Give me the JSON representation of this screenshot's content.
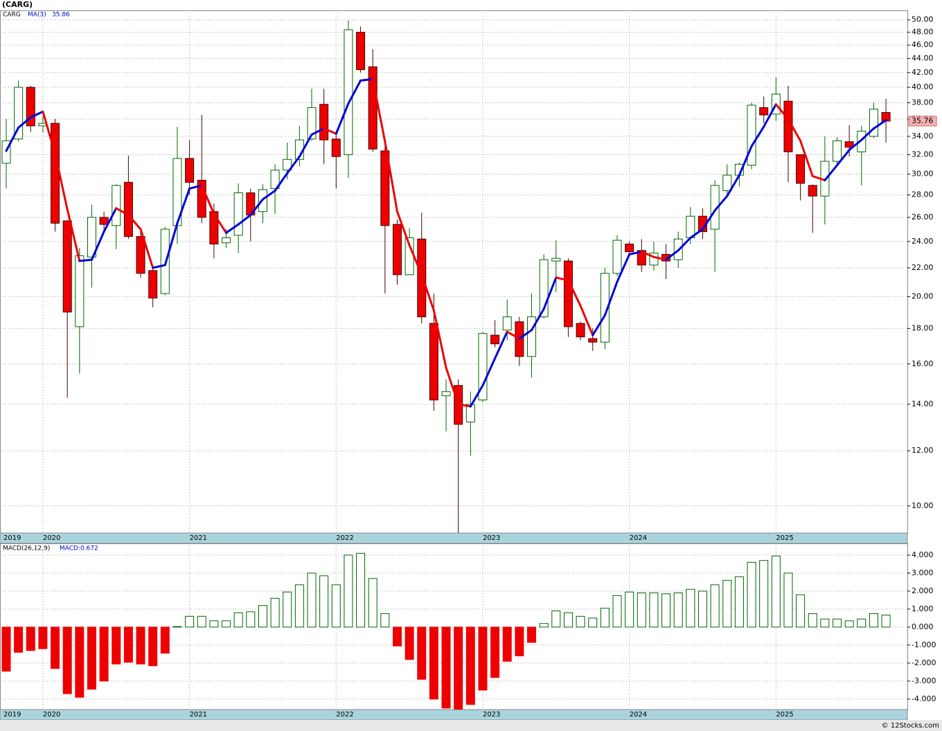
{
  "chart_data": [
    {
      "type": "candlestick",
      "title": "(CARG)",
      "name": "CARG",
      "log_scale": true,
      "grid": true,
      "categories": [
        "2019",
        null,
        null,
        "2020",
        null,
        null,
        null,
        null,
        null,
        null,
        null,
        null,
        null,
        null,
        null,
        "2021",
        null,
        null,
        null,
        null,
        null,
        null,
        null,
        null,
        null,
        null,
        null,
        "2022",
        null,
        null,
        null,
        null,
        null,
        null,
        null,
        null,
        null,
        null,
        null,
        "2023",
        null,
        null,
        null,
        null,
        null,
        null,
        null,
        null,
        null,
        null,
        null,
        "2024",
        null,
        null,
        null,
        null,
        null,
        null,
        null,
        null,
        null,
        null,
        null,
        "2025",
        null,
        null,
        null,
        null,
        null,
        null,
        null,
        null,
        null
      ],
      "open": [
        31.1,
        33.7,
        40,
        35.2,
        35.5,
        25.7,
        18.1,
        22.8,
        26.0,
        25.3,
        29.2,
        24.4,
        21.8,
        20.2,
        25.3,
        31.6,
        29.4,
        26.5,
        23.9,
        24.5,
        28.2,
        26.5,
        28.6,
        30.4,
        31.5,
        33.7,
        37.8,
        33.7,
        32.0,
        48.0,
        42.8,
        32.4,
        25.4,
        21.5,
        24.2,
        18.3,
        14.4,
        14.9,
        13.2,
        14.2,
        17.6,
        17.9,
        18.4,
        16.4,
        18.7,
        22.5,
        22.5,
        18.3,
        17.4,
        17.2,
        21.6,
        23.8,
        23.3,
        22.2,
        23.0,
        22.6,
        24.3,
        26.1,
        25.0,
        28.4,
        29.9,
        30.9,
        37.4,
        36.6,
        38.2,
        32.0,
        28.9,
        27.9,
        31.3,
        33.4,
        32.3,
        34.0,
        36.8
      ],
      "high": [
        36,
        40.9,
        40.2,
        36.3,
        36,
        25.7,
        23.5,
        27.1,
        26.5,
        29.0,
        31.9,
        24.8,
        22.0,
        25.2,
        35.1,
        33.6,
        36.5,
        27.2,
        25.0,
        29.1,
        28.6,
        29,
        31.0,
        33.3,
        35.2,
        39.8,
        39.8,
        34.2,
        49.9,
        48.9,
        45.4,
        33,
        25.8,
        25.1,
        26.4,
        20.2,
        15.2,
        15.2,
        14.6,
        17.8,
        18.5,
        19.8,
        18.7,
        20.2,
        23.0,
        24.1,
        22.7,
        18.4,
        18.0,
        22.0,
        24.5,
        24.0,
        24.2,
        24.0,
        23.8,
        24.8,
        26.9,
        26.8,
        29.4,
        31.0,
        31.2,
        38.0,
        38.8,
        41.3,
        40.2,
        32.0,
        29.0,
        34,
        33.9,
        35.3,
        35.2,
        38.0,
        38.5
      ],
      "low": [
        28.6,
        33.4,
        34.5,
        34.4,
        24.8,
        14.3,
        15.5,
        20.6,
        24.7,
        23.4,
        24.2,
        21.3,
        19.3,
        20.1,
        23.8,
        28,
        25.5,
        22.7,
        23.5,
        23.1,
        24.0,
        25.5,
        26.3,
        29.5,
        30.8,
        33.5,
        31.0,
        28.6,
        29.6,
        42,
        32.3,
        20.2,
        20.8,
        21.5,
        18.3,
        13.7,
        12.8,
        9.0,
        11.8,
        14.1,
        16.9,
        17.3,
        15.9,
        15.3,
        18.6,
        20.3,
        17.5,
        17.3,
        16.7,
        16.8,
        21.4,
        23.0,
        21.7,
        21.8,
        21.2,
        22.0,
        23.8,
        24.2,
        21.7,
        28.0,
        28.8,
        30.5,
        35.5,
        35.8,
        29.2,
        27.5,
        24.7,
        25.4,
        30.9,
        31.8,
        28.9,
        33.8,
        33.3
      ],
      "close": [
        33.5,
        40,
        35.2,
        35.5,
        25.5,
        19.0,
        22.9,
        26,
        25.4,
        28.9,
        24.4,
        21.6,
        19.9,
        25.0,
        31.6,
        29.2,
        26,
        23.8,
        24.3,
        28.2,
        26.2,
        28.5,
        30.4,
        31.5,
        33.6,
        37.4,
        33.6,
        31.8,
        48.4,
        42.4,
        32.6,
        25.3,
        21.5,
        24.3,
        18.7,
        14.2,
        14.6,
        13.1,
        14.0,
        17.7,
        17.1,
        18.7,
        16.4,
        18.7,
        22.6,
        22.7,
        18.1,
        17.5,
        17.2,
        21.6,
        24.1,
        23.2,
        22.2,
        23.1,
        22.5,
        24.2,
        26.1,
        24.8,
        28.9,
        29.9,
        31.0,
        37.7,
        36.5,
        39.1,
        32.3,
        29.1,
        27.9,
        31.3,
        33.5,
        32.8,
        34.6,
        37.2,
        35.76
      ],
      "up_color": "#006400",
      "down_color": "#ee0000",
      "ma": {
        "name": "MA(3)",
        "up_color": "#0000dd",
        "down_color": "#ee0000",
        "values": [
          32.4,
          35.0,
          36.2,
          36.9,
          32.1,
          26.7,
          22.5,
          22.6,
          24.8,
          26.8,
          26.2,
          25.0,
          22.0,
          22.2,
          25.5,
          28.6,
          28.9,
          26.3,
          24.7,
          25.4,
          26.2,
          27.6,
          28.4,
          30.1,
          31.8,
          34.2,
          34.9,
          34.3,
          37.9,
          40.9,
          41.1,
          33.4,
          26.5,
          23.7,
          21.5,
          19.1,
          15.8,
          14.0,
          13.9,
          14.9,
          16.3,
          17.8,
          17.4,
          17.9,
          19.2,
          21.3,
          21.1,
          19.4,
          17.6,
          18.8,
          21.0,
          23.0,
          23.2,
          22.8,
          22.6,
          23.3,
          24.3,
          25.0,
          26.6,
          27.9,
          29.9,
          32.9,
          35.1,
          37.8,
          36.0,
          33.5,
          29.8,
          29.4,
          30.9,
          32.5,
          33.6,
          34.9,
          35.86
        ]
      },
      "ylim": [
        9.14,
        51.6
      ],
      "yticks": [
        {
          "value": 10,
          "label": "10.00"
        },
        {
          "value": 12,
          "label": "12.00"
        },
        {
          "value": 14,
          "label": "14.00"
        },
        {
          "value": 16,
          "label": "16.00"
        },
        {
          "value": 18,
          "label": "18.00"
        },
        {
          "value": 20,
          "label": "20.00"
        },
        {
          "value": 22,
          "label": "22.00"
        },
        {
          "value": 24,
          "label": "24.00"
        },
        {
          "value": 26,
          "label": "26.00"
        },
        {
          "value": 28,
          "label": "28.00"
        },
        {
          "value": 30,
          "label": "30.00"
        },
        {
          "value": 32,
          "label": "32.00"
        },
        {
          "value": 34,
          "label": "34.00"
        },
        {
          "value": 36,
          "label": "36.00"
        },
        {
          "value": 38,
          "label": "38.00"
        },
        {
          "value": 40,
          "label": "40.00"
        },
        {
          "value": 42,
          "label": "42.00"
        },
        {
          "value": 44,
          "label": "44.00"
        },
        {
          "value": 46,
          "label": "46.00"
        },
        {
          "value": 48,
          "label": "48.00"
        },
        {
          "value": 50,
          "label": "50.00"
        }
      ]
    },
    {
      "type": "bar",
      "name": "MACD(26,12,9)",
      "last_label": "MACD:0.672",
      "grid": true,
      "pos_color": "#006400",
      "neg_color": "#ee0000",
      "values": [
        -2.45,
        -1.4,
        -1.3,
        -1.2,
        -2.3,
        -3.7,
        -3.9,
        -3.45,
        -3.0,
        -2.05,
        -1.95,
        -2.05,
        -2.15,
        -1.45,
        0.03,
        0.6,
        0.6,
        0.35,
        0.35,
        0.8,
        0.85,
        1.2,
        1.6,
        1.95,
        2.35,
        3.0,
        2.85,
        2.35,
        4.0,
        4.1,
        2.7,
        0.75,
        -1.05,
        -1.8,
        -2.9,
        -4.0,
        -4.5,
        -4.6,
        -4.3,
        -3.5,
        -2.8,
        -1.9,
        -1.6,
        -0.85,
        0.2,
        0.9,
        0.8,
        0.6,
        0.5,
        1.05,
        1.75,
        1.95,
        1.9,
        1.9,
        1.85,
        1.9,
        2.1,
        2.0,
        2.35,
        2.6,
        2.8,
        3.6,
        3.7,
        3.95,
        3.0,
        1.8,
        0.75,
        0.45,
        0.45,
        0.35,
        0.45,
        0.75,
        0.672
      ],
      "ylim": [
        -4.58,
        4.65
      ],
      "yticks": [
        {
          "value": -4,
          "label": "-4.000"
        },
        {
          "value": -3,
          "label": "-3.000"
        },
        {
          "value": -2,
          "label": "-2.000"
        },
        {
          "value": -1,
          "label": "-1.000"
        },
        {
          "value": 0,
          "label": "0.000"
        },
        {
          "value": 1,
          "label": "1.000"
        },
        {
          "value": 2,
          "label": "2.000"
        },
        {
          "value": 3,
          "label": "3.000"
        },
        {
          "value": 4,
          "label": "4.000"
        }
      ]
    }
  ],
  "footer": "© 12Stocks.com"
}
